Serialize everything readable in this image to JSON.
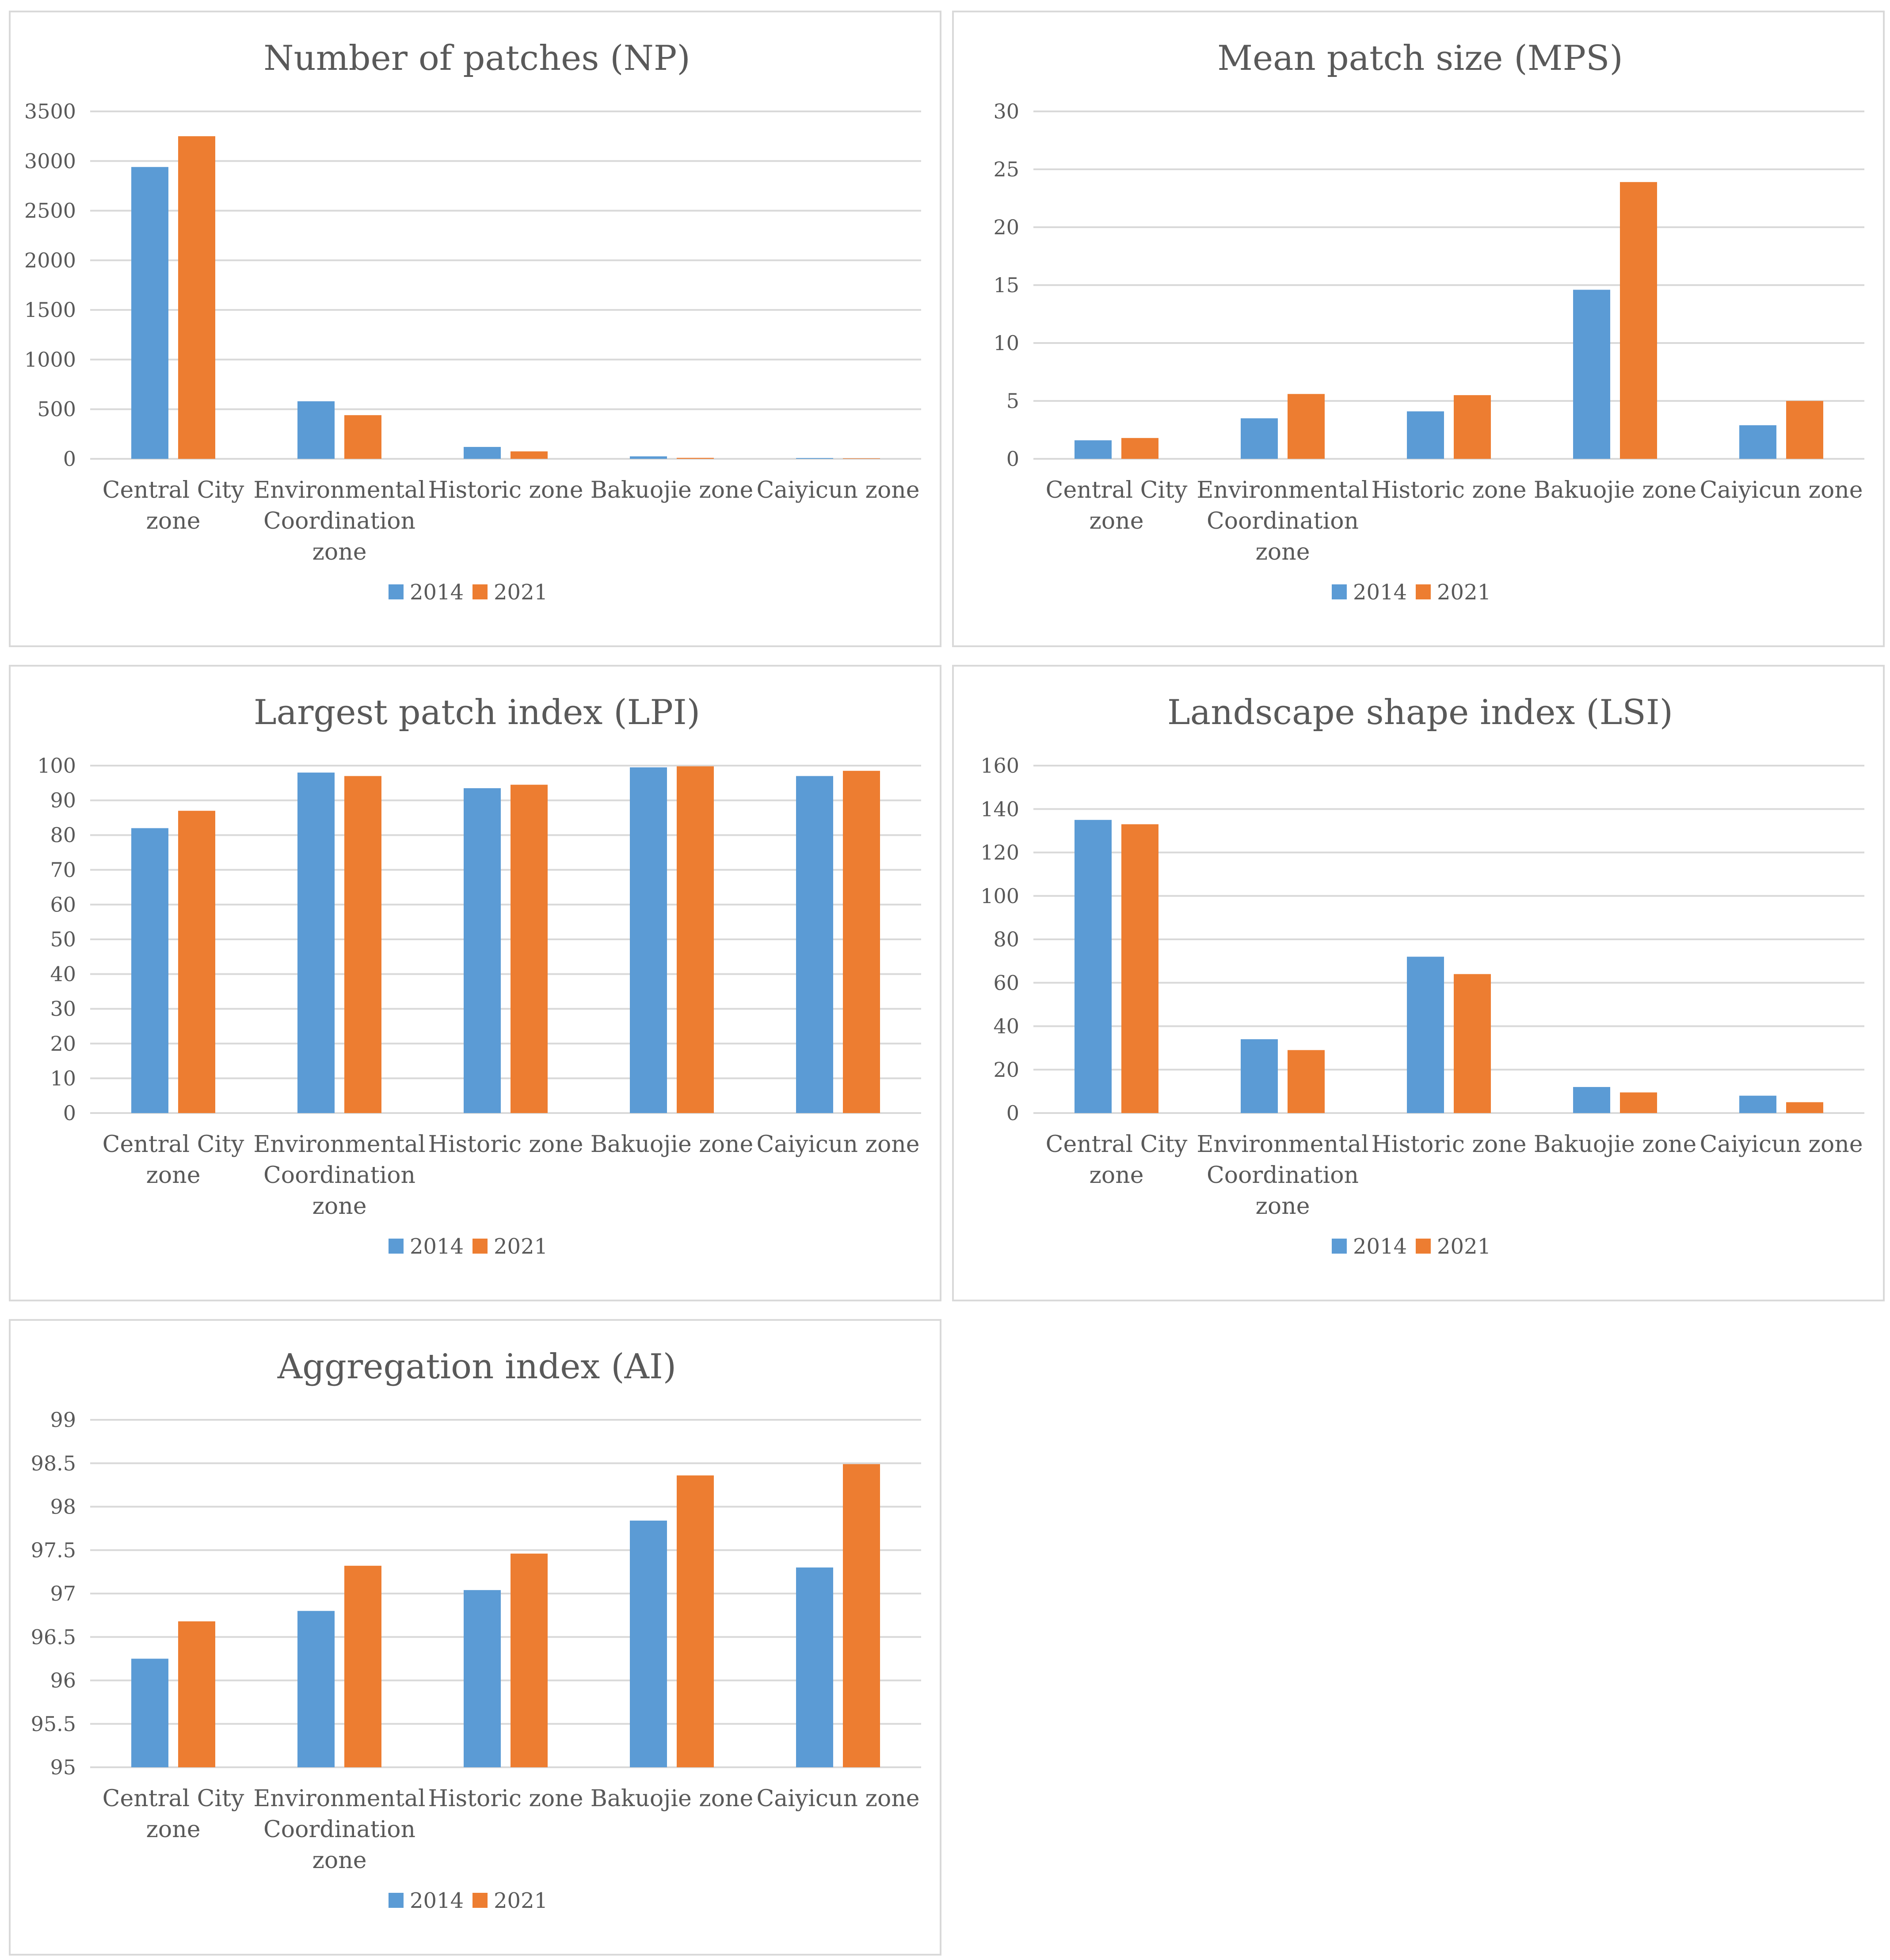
{
  "colors": {
    "series_2014": "#5b9bd5",
    "series_2021": "#ed7d31",
    "grid": "#d9d9d9",
    "text": "#595959"
  },
  "chart_data": [
    {
      "type": "bar",
      "title": "Number of patches (NP)",
      "categories": [
        [
          "Central City",
          "zone"
        ],
        [
          "Environmental",
          "Coordination",
          "zone"
        ],
        [
          "Historic zone"
        ],
        [
          "Bakuojie zone"
        ],
        [
          "Caiyicun zone"
        ]
      ],
      "series": [
        {
          "name": "2014",
          "values": [
            2940,
            580,
            120,
            25,
            8
          ]
        },
        {
          "name": "2021",
          "values": [
            3250,
            440,
            75,
            10,
            5
          ]
        }
      ],
      "ylim": [
        0,
        3500
      ],
      "yticks": [
        "0",
        "500",
        "1000",
        "1500",
        "2000",
        "2500",
        "3000",
        "3500"
      ],
      "legend": "bottom"
    },
    {
      "type": "bar",
      "title": "Mean patch size (MPS)",
      "categories": [
        [
          "Central City",
          "zone"
        ],
        [
          "Environmental",
          "Coordination",
          "zone"
        ],
        [
          "Historic zone"
        ],
        [
          "Bakuojie zone"
        ],
        [
          "Caiyicun zone"
        ]
      ],
      "series": [
        {
          "name": "2014",
          "values": [
            1.6,
            3.5,
            4.1,
            14.6,
            2.9
          ]
        },
        {
          "name": "2021",
          "values": [
            1.8,
            5.6,
            5.5,
            23.9,
            5.0
          ]
        }
      ],
      "ylim": [
        0,
        30
      ],
      "yticks": [
        "0",
        "5",
        "10",
        "15",
        "20",
        "25",
        "30"
      ],
      "legend": "bottom"
    },
    {
      "type": "bar",
      "title": "Largest patch index (LPI)",
      "categories": [
        [
          "Central City",
          "zone"
        ],
        [
          "Environmental",
          "Coordination",
          "zone"
        ],
        [
          "Historic zone"
        ],
        [
          "Bakuojie zone"
        ],
        [
          "Caiyicun zone"
        ]
      ],
      "series": [
        {
          "name": "2014",
          "values": [
            82,
            98,
            93.5,
            99.5,
            97
          ]
        },
        {
          "name": "2021",
          "values": [
            87,
            97,
            94.5,
            99.8,
            98.5
          ]
        }
      ],
      "ylim": [
        0,
        100
      ],
      "yticks": [
        "0",
        "10",
        "20",
        "30",
        "40",
        "50",
        "60",
        "70",
        "80",
        "90",
        "100"
      ],
      "legend": "bottom"
    },
    {
      "type": "bar",
      "title": "Landscape shape index (LSI)",
      "categories": [
        [
          "Central City",
          "zone"
        ],
        [
          "Environmental",
          "Coordination",
          "zone"
        ],
        [
          "Historic zone"
        ],
        [
          "Bakuojie zone"
        ],
        [
          "Caiyicun zone"
        ]
      ],
      "series": [
        {
          "name": "2014",
          "values": [
            135,
            34,
            72,
            12,
            8
          ]
        },
        {
          "name": "2021",
          "values": [
            133,
            29,
            64,
            9.5,
            5
          ]
        }
      ],
      "ylim": [
        0,
        160
      ],
      "yticks": [
        "0",
        "20",
        "40",
        "60",
        "80",
        "100",
        "120",
        "140",
        "160"
      ],
      "legend": "bottom"
    },
    {
      "type": "bar",
      "title": "Aggregation index (AI)",
      "categories": [
        [
          "Central City",
          "zone"
        ],
        [
          "Environmental",
          "Coordination",
          "zone"
        ],
        [
          "Historic zone"
        ],
        [
          "Bakuojie zone"
        ],
        [
          "Caiyicun zone"
        ]
      ],
      "series": [
        {
          "name": "2014",
          "values": [
            96.25,
            96.8,
            97.04,
            97.84,
            97.3
          ]
        },
        {
          "name": "2021",
          "values": [
            96.68,
            97.32,
            97.46,
            98.36,
            98.49
          ]
        }
      ],
      "ylim": [
        95,
        99
      ],
      "yticks": [
        "95",
        "95.5",
        "96",
        "96.5",
        "97",
        "97.5",
        "98",
        "98.5",
        "99"
      ],
      "legend": "bottom"
    }
  ]
}
